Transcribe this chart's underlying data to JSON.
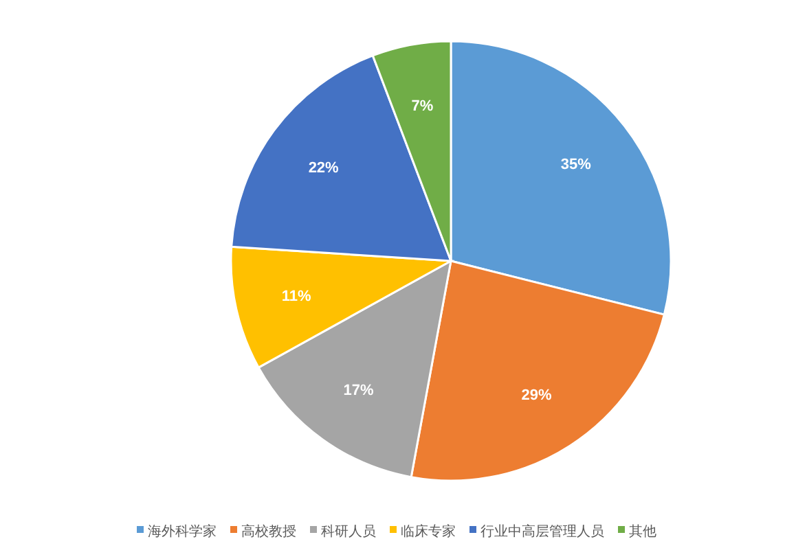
{
  "chart_data": {
    "type": "pie",
    "categories": [
      "海外科学家",
      "高校教授",
      "科研人员",
      "临床专家",
      "行业中高层管理人员",
      "其他"
    ],
    "values": [
      35,
      29,
      17,
      11,
      22,
      7
    ],
    "colors": [
      "#5b9bd5",
      "#ed7d31",
      "#a5a5a5",
      "#ffc000",
      "#4472c4",
      "#70ad47"
    ],
    "value_labels": [
      "35%",
      "29%",
      "17%",
      "11%",
      "22%",
      "7%"
    ],
    "legend": "bottom"
  }
}
